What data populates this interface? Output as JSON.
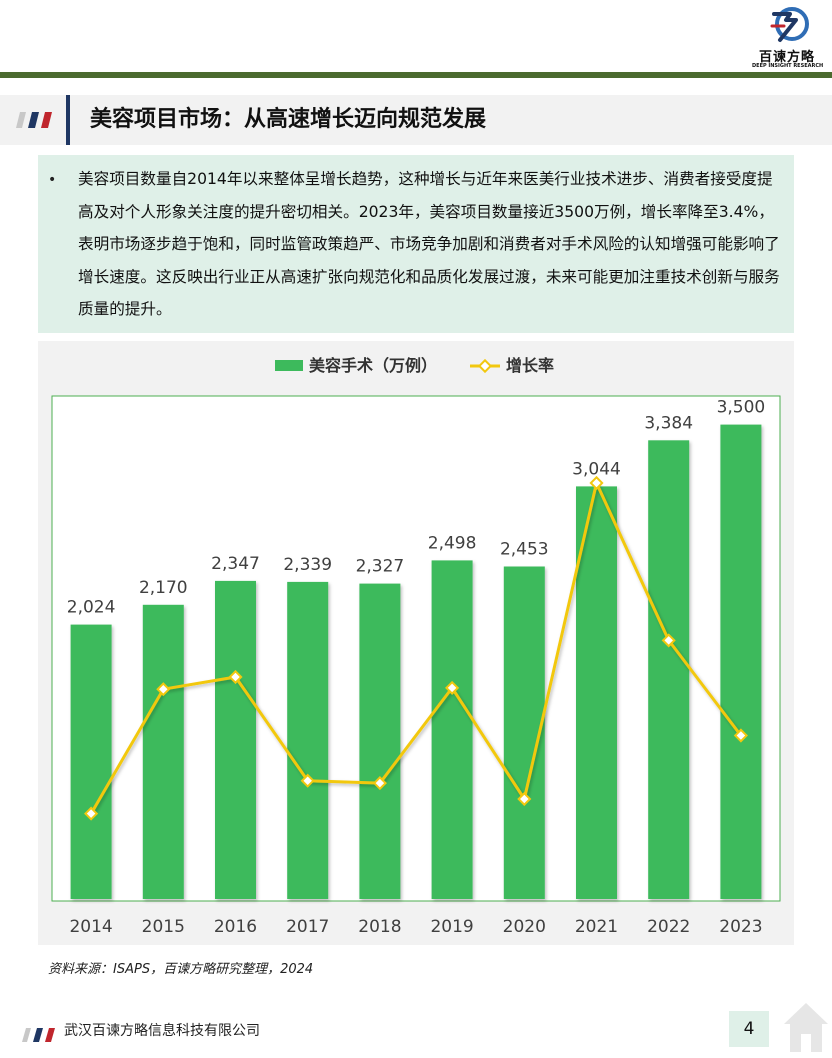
{
  "header": {
    "logo_name": "百谏方略",
    "logo_sub": "DEEP INSIGHT RESEARCH"
  },
  "page_title": "美容项目市场：从高速增长迈向规范发展",
  "summary": {
    "bullet": "•",
    "text": "美容项目数量自2014年以来整体呈增长趋势，这种增长与近年来医美行业技术进步、消费者接受度提高及对个人形象关注度的提升密切相关。2023年，美容项目数量接近3500万例，增长率降至3.4%，表明市场逐步趋于饱和，同时监管政策趋严、市场竞争加剧和消费者对手术风险的认知增强可能影响了增长速度。这反映出行业正从高速扩张向规范化和品质化发展过渡，未来可能更加注重技术创新与服务质量的提升。"
  },
  "colors": {
    "bar": "#3dba5c",
    "line": "#f2c80f",
    "accent_green": "#4b6a2f",
    "accent_navy": "#1f3763",
    "accent_red": "#c0262d"
  },
  "chart_data": {
    "type": "bar",
    "categories": [
      "2014",
      "2015",
      "2016",
      "2017",
      "2018",
      "2019",
      "2020",
      "2021",
      "2022",
      "2023"
    ],
    "series": [
      {
        "name": "美容手术（万例）",
        "type": "bar",
        "axis": "left",
        "values": [
          2024,
          2170,
          2347,
          2339,
          2327,
          2498,
          2453,
          3044,
          3384,
          3500
        ]
      },
      {
        "name": "增长率",
        "type": "line",
        "axis": "right",
        "values": [
          -3.0,
          7.2,
          8.2,
          -0.3,
          -0.5,
          7.3,
          -1.8,
          24.1,
          11.2,
          3.4
        ]
      }
    ],
    "data_labels": [
      "2,024",
      "2,170",
      "2,347",
      "2,339",
      "2,327",
      "2,498",
      "2,453",
      "3,044",
      "3,384",
      "3,500"
    ],
    "ylim": [
      0,
      3600
    ],
    "y2lim": [
      -10,
      30
    ],
    "legend": "top-center",
    "grid": false
  },
  "source": "资料来源：ISAPS，百谏方略研究整理，2024",
  "footer": {
    "company": "武汉百谏方略信息科技有限公司",
    "page_number": "4"
  }
}
